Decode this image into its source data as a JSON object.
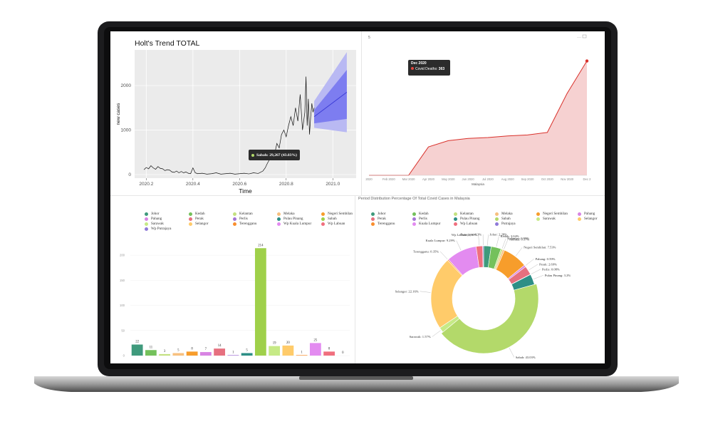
{
  "colors": {
    "holt_band_outer": "#b9b9f3",
    "holt_band_inner": "#7d7df0",
    "holt_forecast": "#3a3ad6",
    "deaths_line": "#d9312b",
    "deaths_fill": "#f6d1d1"
  },
  "chart_data": [
    {
      "type": "line",
      "title": "Holt's Trend TOTAL",
      "xlabel": "Time",
      "ylabel": "new cases",
      "x_ticks": [
        "2020.2",
        "2020.4",
        "2020.6",
        "2020.8",
        "2021.0"
      ],
      "y_ticks": [
        "0",
        "1000",
        "2000"
      ],
      "xlim": [
        2020.15,
        2021.1
      ],
      "ylim": [
        -80,
        2800
      ],
      "grid": true,
      "series": [
        {
          "kind": "observed",
          "x": [
            2020.19,
            2020.2,
            2020.21,
            2020.22,
            2020.23,
            2020.24,
            2020.25,
            2020.26,
            2020.27,
            2020.28,
            2020.29,
            2020.3,
            2020.31,
            2020.32,
            2020.33,
            2020.34,
            2020.35,
            2020.36,
            2020.37,
            2020.38,
            2020.39,
            2020.4,
            2020.41,
            2020.42,
            2020.44,
            2020.46,
            2020.48,
            2020.5,
            2020.52,
            2020.54,
            2020.56,
            2020.58,
            2020.6,
            2020.62,
            2020.64,
            2020.66,
            2020.68,
            2020.7,
            2020.71,
            2020.72,
            2020.73,
            2020.74,
            2020.75,
            2020.76,
            2020.77,
            2020.78,
            2020.79,
            2020.8,
            2020.81,
            2020.82,
            2020.83,
            2020.84,
            2020.85,
            2020.86,
            2020.87,
            2020.88,
            2020.885,
            2020.89,
            2020.895,
            2020.9,
            2020.905,
            2020.91,
            2020.915,
            2020.92
          ],
          "y": [
            110,
            160,
            130,
            200,
            150,
            120,
            180,
            140,
            130,
            90,
            110,
            100,
            60,
            50,
            80,
            40,
            70,
            40,
            60,
            30,
            20,
            150,
            40,
            20,
            30,
            10,
            20,
            40,
            10,
            20,
            30,
            10,
            20,
            30,
            15,
            40,
            25,
            80,
            150,
            260,
            350,
            500,
            450,
            700,
            600,
            900,
            1000,
            850,
            1100,
            1300,
            1100,
            1500,
            1200,
            1800,
            1000,
            1400,
            2200,
            1100,
            1700,
            900,
            1300,
            1600,
            1400,
            1500
          ]
        },
        {
          "kind": "forecast",
          "x": [
            2020.92,
            2021.06
          ],
          "y": [
            1300,
            1850
          ]
        }
      ],
      "forecast_bands": {
        "x": [
          2020.92,
          2021.06
        ],
        "inner_low": [
          1150,
          1250
        ],
        "inner_high": [
          1450,
          2350
        ],
        "outer_low": [
          1050,
          950
        ],
        "outer_high": [
          1650,
          2750
        ]
      }
    },
    {
      "type": "area",
      "title": "",
      "xlabel": "Malaysia",
      "ylabel": "",
      "categories": [
        "2020",
        "Feb 2020",
        "Mar 2020",
        "Apr 2020",
        "May 2020",
        "Jun 2020",
        "Jul 2020",
        "Aug 2020",
        "Sep 2020",
        "Oct 2020",
        "Nov 2020",
        "Dec 2"
      ],
      "series": [
        {
          "name": "Covid Deaths",
          "values": [
            0,
            0,
            0,
            90,
            110,
            117,
            120,
            125,
            128,
            136,
            260,
            363
          ]
        }
      ],
      "ylim": [
        0,
        380
      ],
      "tooltip": {
        "title": "Dec 2020",
        "label": "Covid Deaths:",
        "value": "363"
      }
    },
    {
      "type": "bar",
      "title": "",
      "categories": [
        "Johor",
        "Kedah",
        "Kelantan",
        "Melaka",
        "Negeri Sembilan",
        "Pahang",
        "Perak",
        "Perlis",
        "Pulau Pinang",
        "Sabah",
        "Sarawak",
        "Selangor",
        "Terengganu",
        "Wp Kuala Lumpur",
        "Wp Labuan",
        "Wp Putrajaya"
      ],
      "legend_order": [
        "Johor",
        "Kedah",
        "Kelantan",
        "Melaka",
        "Negeri Sembilan",
        "Pahang",
        "Perak",
        "Perlis",
        "Pulau Pinang",
        "Sabah",
        "Sarawak",
        "Selangor",
        "Terengganu",
        "Wp Kuala Lumpur",
        "Wp Labuan",
        "Wp Putrajaya"
      ],
      "bar_order": [
        "Johor",
        "Kedah",
        "Kelantan",
        "Melaka",
        "Negeri Sembilan",
        "Pahang",
        "Perak",
        "Perlis",
        "Pulau Pinang",
        "Sabah",
        "Sarawak",
        "Selangor",
        "Terengganu",
        "Wp Kuala Lumpur",
        "Wp Labuan",
        "Wp Putrajaya"
      ],
      "values": [
        22,
        11,
        3,
        5,
        8,
        7,
        14,
        1,
        5,
        214,
        19,
        20,
        1,
        25,
        8,
        0
      ],
      "colors": [
        "#3f9a7c",
        "#74c15b",
        "#c4e17f",
        "#f7c07f",
        "#f79d2b",
        "#d884e3",
        "#e6707f",
        "#a474d6",
        "#2d8f86",
        "#9fd04a",
        "#c6ea86",
        "#ffcb6a",
        "#f98e2e",
        "#e38bf0",
        "#f06f7e",
        "#8f7ad8"
      ],
      "y_ticks": [
        "0",
        "50",
        "100",
        "150",
        "200"
      ],
      "ylim": [
        0,
        230
      ]
    },
    {
      "type": "pie",
      "title": "Period Distribution Percentage Of Total Covid Cases in Malaysia",
      "labels": [
        "Johor",
        "Kedah",
        "Kelantan",
        "Melaka",
        "Negeri Sembilan",
        "Pahang",
        "Perak",
        "Perlis",
        "Pulau Pinang",
        "Sabah",
        "Sarawak",
        "Selangor",
        "Terengganu",
        "Kuala Lumpur",
        "Wp Labuan",
        "Putrajaya"
      ],
      "values": [
        2.28,
        3.04,
        0.55,
        0.57,
        7.53,
        0.59,
        2.69,
        0.08,
        3.2,
        43.03,
        1.57,
        22.16,
        0.35,
        9.29,
        1.99,
        0.3
      ],
      "colors": [
        "#3f9a7c",
        "#74c15b",
        "#c4e17f",
        "#f7c07f",
        "#f79d2b",
        "#d884e3",
        "#e6707f",
        "#a474d6",
        "#2d8f86",
        "#b3d96a",
        "#c6ea86",
        "#ffcb6a",
        "#f98e2e",
        "#e38bf0",
        "#f06f7e",
        "#8f7ad8"
      ],
      "data_labels": [
        "Johor: 2.28%",
        "Kedah: 3.04%",
        "Kelantan: 0.55%",
        "Melaka: 0.57%",
        "Negeri Sembilan: 7.53%",
        "Pahang: 0.59%",
        "Perak: 2.69%",
        "Perlis: 0.08%",
        "Pulau Pinang: 3.2%",
        "Sabah: 43.03%",
        "Sarawak: 1.57%",
        "Selangor: 22.16%",
        "Terengganu: 0.35%",
        "Kuala Lumpur: 9.29%",
        "Wp Labuan: 1.99%",
        "Putrajaya: 0.3%"
      ],
      "legend": [
        "Johor",
        "Kedah",
        "Kelantan",
        "Melaka",
        "Negeri Sembilan",
        "Pahang",
        "Perak",
        "Perlis",
        "Pulau Pinang",
        "Sabah",
        "Sarawak",
        "Selangor",
        "Terengganu",
        "Kuala Lumpur",
        "Wp Labuan",
        "Putrajaya"
      ],
      "tooltip": {
        "label": "Sabah:",
        "value": "29,267 (43.03%)"
      }
    }
  ],
  "deaths_panel": {
    "corner_mark": "5",
    "toolbar_icons": [
      "more-icon",
      "expand-icon"
    ]
  }
}
